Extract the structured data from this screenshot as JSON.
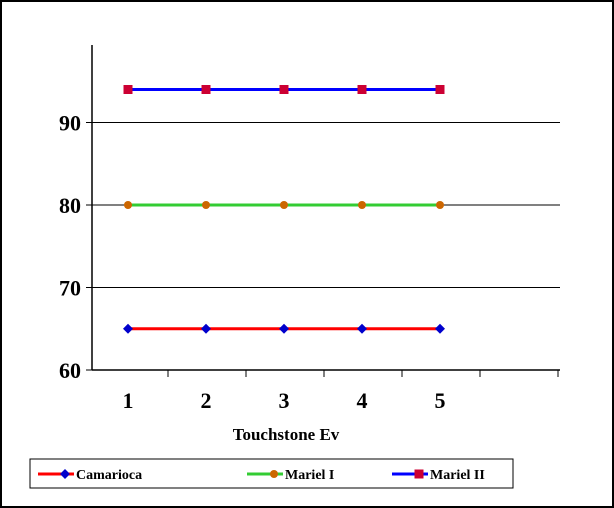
{
  "chart_data": {
    "type": "line",
    "x": [
      1,
      2,
      3,
      4,
      5
    ],
    "x_tick_labels": [
      "1",
      "2",
      "3",
      "4",
      "5"
    ],
    "xlabel": "Touchstone Ev",
    "ylabel": "",
    "y_tick_labels": [
      "60",
      "70",
      "80",
      "90"
    ],
    "ylim": [
      60,
      100
    ],
    "grid": "horizontal",
    "legend_position": "bottom",
    "series": [
      {
        "name": "Camarioca",
        "values": [
          65,
          65,
          65,
          65,
          65
        ],
        "color": "#ff0000",
        "marker": "diamond",
        "marker_color": "#0000cc"
      },
      {
        "name": "Mariel I",
        "values": [
          80,
          80,
          80,
          80,
          80
        ],
        "color": "#33cc33",
        "marker": "circle",
        "marker_color": "#cc6600"
      },
      {
        "name": "Mariel II",
        "values": [
          94,
          94,
          94,
          94,
          94
        ],
        "color": "#0000ff",
        "marker": "square",
        "marker_color": "#cc0033"
      }
    ]
  }
}
